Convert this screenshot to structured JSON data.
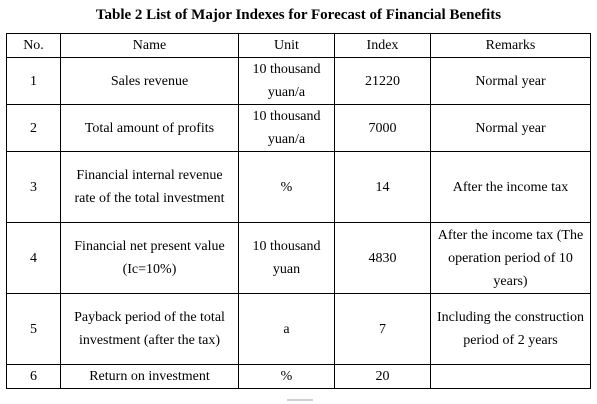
{
  "title": "Table 2 List of Major Indexes for Forecast of Financial Benefits",
  "headers": [
    "No.",
    "Name",
    "Unit",
    "Index",
    "Remarks"
  ],
  "rows": [
    [
      "1",
      "Sales revenue",
      "10 thousand yuan/a",
      "21220",
      "Normal year"
    ],
    [
      "2",
      "Total amount of profits",
      "10 thousand yuan/a",
      "7000",
      "Normal year"
    ],
    [
      "3",
      "Financial internal revenue rate of the total investment",
      "%",
      "14",
      "After the income tax"
    ],
    [
      "4",
      "Financial net present value (Ic=10%)",
      "10 thousand yuan",
      "4830",
      "After the income tax (The operation period of 10 years)"
    ],
    [
      "5",
      "Payback period of the total investment (after the tax)",
      "a",
      "7",
      "Including the construction period of 2 years"
    ],
    [
      "6",
      "Return on investment",
      "%",
      "20",
      ""
    ]
  ]
}
